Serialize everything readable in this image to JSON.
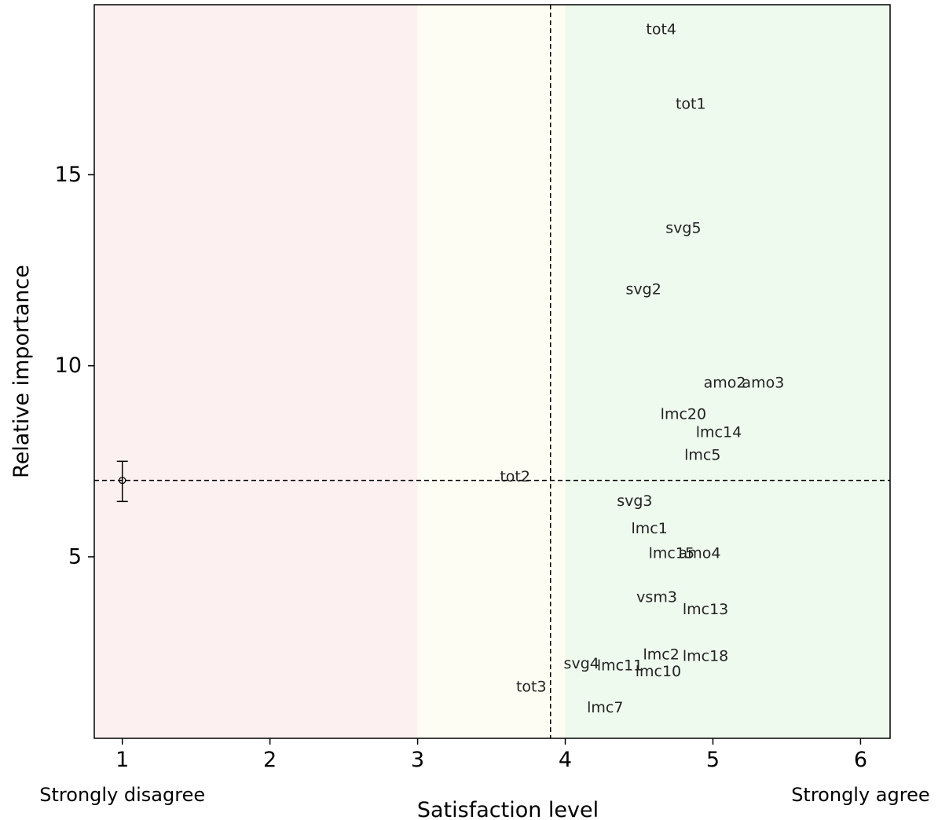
{
  "chart_data": {
    "type": "scatter",
    "xlabel": "Satisfaction level",
    "ylabel": "Relative importance",
    "xlim": [
      0.81,
      6.2
    ],
    "ylim": [
      0.25,
      19.45
    ],
    "x_ticks": [
      1,
      2,
      3,
      4,
      5,
      6
    ],
    "y_ticks": [
      5,
      10,
      15
    ],
    "x_anchor_labels": [
      {
        "x": 1,
        "label": "Strongly disagree"
      },
      {
        "x": 6,
        "label": "Strongly agree"
      }
    ],
    "regions": [
      {
        "from": 0.81,
        "to": 3,
        "color": "#fdf0f0"
      },
      {
        "from": 3,
        "to": 4,
        "color": "#fefdf3"
      },
      {
        "from": 4,
        "to": 6.2,
        "color": "#effaee"
      }
    ],
    "reference_lines": {
      "x": 3.9,
      "y": 7.0
    },
    "mean_marker": {
      "x": 1,
      "y": 7.0,
      "y_low": 6.45,
      "y_high": 7.5
    },
    "points": [
      {
        "label": "tot4",
        "x": 4.65,
        "y": 18.8
      },
      {
        "label": "tot1",
        "x": 4.85,
        "y": 16.85
      },
      {
        "label": "svg5",
        "x": 4.8,
        "y": 13.6
      },
      {
        "label": "svg2",
        "x": 4.53,
        "y": 12.0
      },
      {
        "label": "amo2",
        "x": 5.08,
        "y": 9.55
      },
      {
        "label": "amo3",
        "x": 5.34,
        "y": 9.55
      },
      {
        "label": "lmc20",
        "x": 4.8,
        "y": 8.73
      },
      {
        "label": "lmc14",
        "x": 5.04,
        "y": 8.26
      },
      {
        "label": "lmc5",
        "x": 4.93,
        "y": 7.66
      },
      {
        "label": "tot2",
        "x": 3.66,
        "y": 7.1
      },
      {
        "label": "svg3",
        "x": 4.47,
        "y": 6.46
      },
      {
        "label": "lmc1",
        "x": 4.57,
        "y": 5.74
      },
      {
        "label": "lmc15",
        "x": 4.72,
        "y": 5.09
      },
      {
        "label": "amo4",
        "x": 4.91,
        "y": 5.09
      },
      {
        "label": "vsm3",
        "x": 4.62,
        "y": 3.94
      },
      {
        "label": "lmc13",
        "x": 4.95,
        "y": 3.62
      },
      {
        "label": "lmc2",
        "x": 4.65,
        "y": 2.44
      },
      {
        "label": "lmc18",
        "x": 4.95,
        "y": 2.4
      },
      {
        "label": "svg4",
        "x": 4.11,
        "y": 2.2
      },
      {
        "label": "lmc11",
        "x": 4.37,
        "y": 2.15
      },
      {
        "label": "lmc10",
        "x": 4.63,
        "y": 2.0
      },
      {
        "label": "tot3",
        "x": 3.77,
        "y": 1.6
      },
      {
        "label": "lmc7",
        "x": 4.27,
        "y": 1.05
      }
    ]
  }
}
